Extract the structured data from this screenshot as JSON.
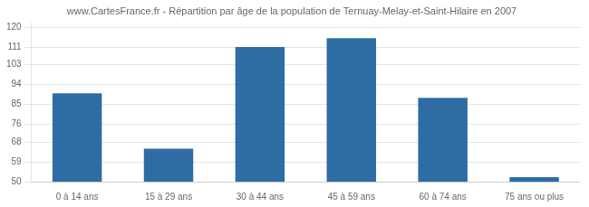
{
  "chart_data": {
    "type": "bar",
    "title": "www.CartesFrance.fr - Répartition par âge de la population de Ternuay-Melay-et-Saint-Hilaire en 2007",
    "categories": [
      "0 à 14 ans",
      "15 à 29 ans",
      "30 à 44 ans",
      "45 à 59 ans",
      "60 à 74 ans",
      "75 ans ou plus"
    ],
    "values": [
      90,
      65,
      111,
      115,
      88,
      52
    ],
    "color": "#2e6da4",
    "ylim": [
      50,
      122
    ],
    "yticks": [
      50,
      59,
      68,
      76,
      85,
      94,
      103,
      111,
      120
    ],
    "grid": true
  }
}
